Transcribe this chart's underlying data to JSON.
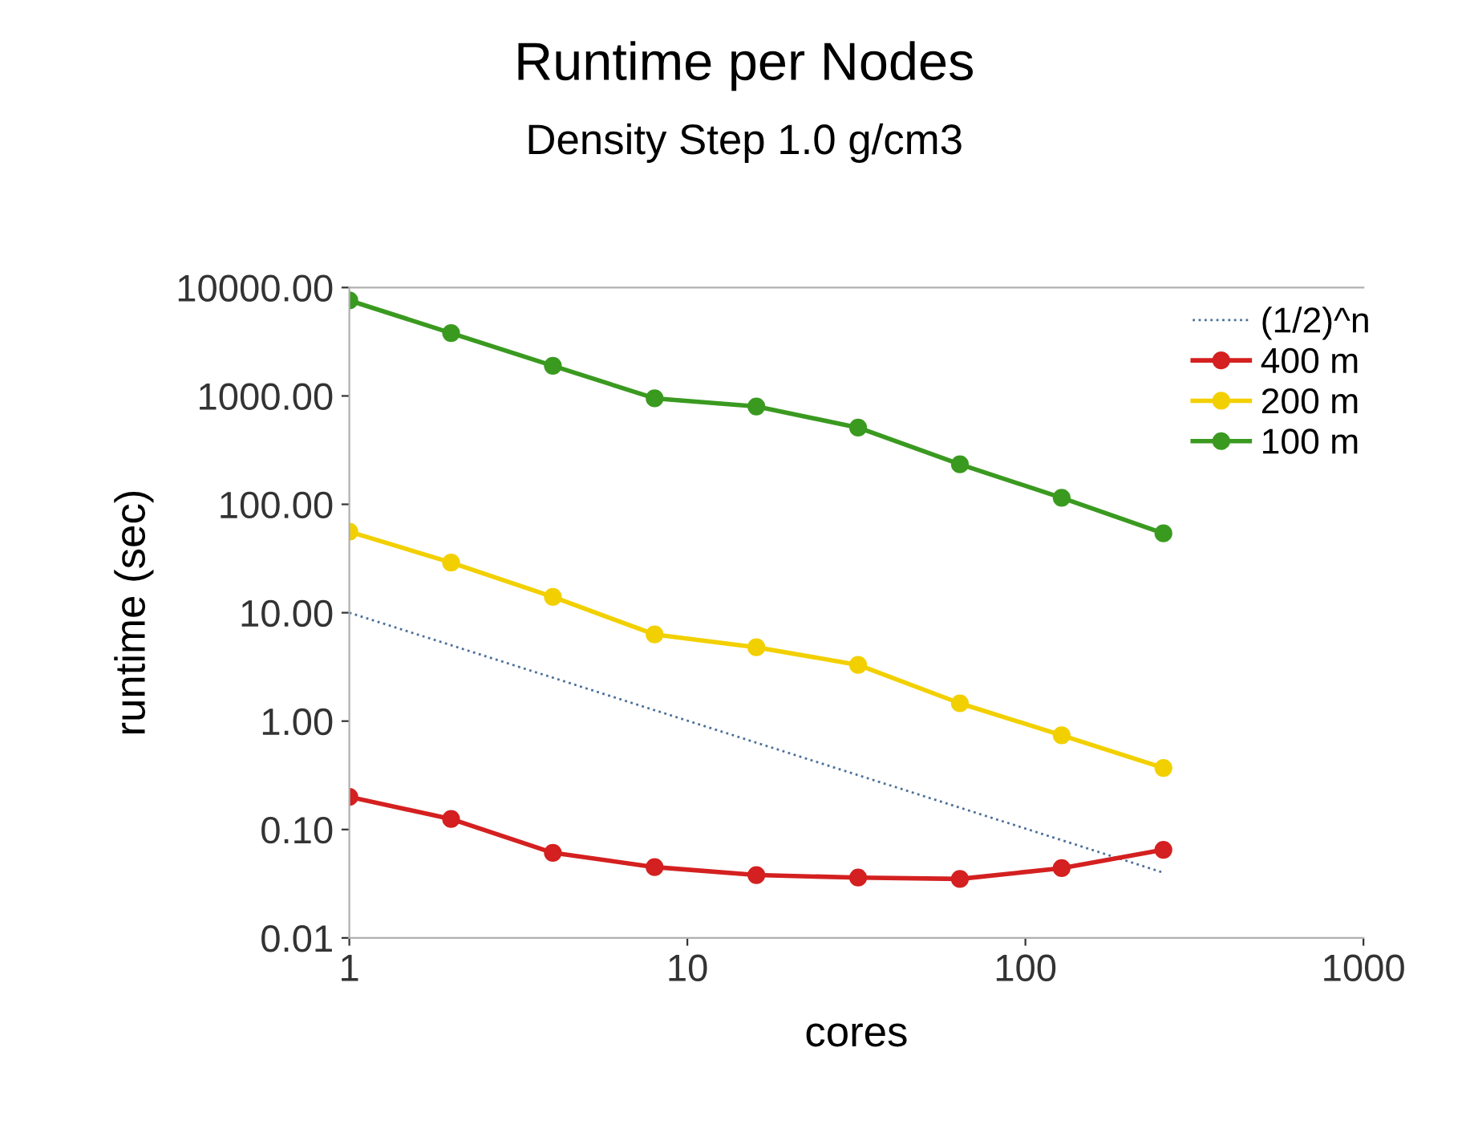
{
  "chart_data": {
    "type": "line",
    "title": "Runtime per Nodes",
    "subtitle": "Density Step 1.0 g/cm3",
    "xlabel": "cores",
    "ylabel": "runtime (sec)",
    "log": "xy",
    "x": [
      1,
      2,
      4,
      8,
      16,
      32,
      64,
      128,
      256
    ],
    "xlim": [
      1,
      1000
    ],
    "xticks": [
      1,
      10,
      100,
      1000
    ],
    "ylim": [
      0.01,
      10000
    ],
    "yticks": [
      {
        "value": 0.01,
        "label": "0.01"
      },
      {
        "value": 0.1,
        "label": "0.10"
      },
      {
        "value": 1,
        "label": "1.00"
      },
      {
        "value": 10,
        "label": "10.00"
      },
      {
        "value": 100,
        "label": "100.00"
      },
      {
        "value": 1000,
        "label": "1000.00"
      },
      {
        "value": 10000,
        "label": "10000.00"
      }
    ],
    "grid": false,
    "legend": "top right",
    "marker": "circle",
    "series": [
      {
        "name": "(1/2)^n",
        "color": "#4a6f9a",
        "x": [
          1,
          256
        ],
        "values": [
          10,
          0.04
        ],
        "line_style": "dotted",
        "marker": "none"
      },
      {
        "name": "400 m",
        "color": "#d42020",
        "values": [
          0.2,
          0.125,
          0.061,
          0.045,
          0.038,
          0.036,
          0.035,
          0.044,
          0.065
        ]
      },
      {
        "name": "200 m",
        "color": "#f2d000",
        "values": [
          56,
          29,
          14,
          6.3,
          4.8,
          3.3,
          1.46,
          0.74,
          0.37
        ]
      },
      {
        "name": "100 m",
        "color": "#3a9a20",
        "values": [
          7600,
          3800,
          1900,
          950,
          800,
          510,
          234,
          115,
          54
        ]
      }
    ]
  }
}
